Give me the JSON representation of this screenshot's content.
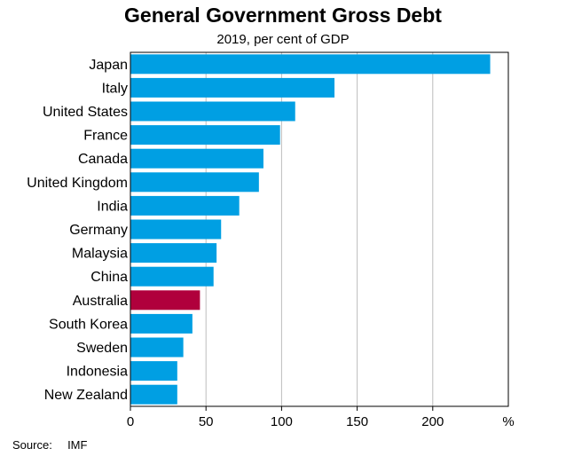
{
  "chart_data": {
    "type": "bar",
    "orientation": "horizontal",
    "title": "General Government Gross Debt",
    "subtitle": "2019, per cent of GDP",
    "categories": [
      "Japan",
      "Italy",
      "United States",
      "France",
      "Canada",
      "United Kingdom",
      "India",
      "Germany",
      "Malaysia",
      "China",
      "Australia",
      "South Korea",
      "Sweden",
      "Indonesia",
      "New Zealand"
    ],
    "values": [
      238,
      135,
      109,
      99,
      88,
      85,
      72,
      60,
      57,
      55,
      46,
      41,
      35,
      31,
      31
    ],
    "highlight": "Australia",
    "xlim": [
      0,
      250
    ],
    "xticks": [
      "0",
      "50",
      "100",
      "150",
      "200"
    ],
    "xunit": "%",
    "grid": true,
    "colors": {
      "bar": "#009fe3",
      "highlight": "#b0003c",
      "grid": "#bdbdbd",
      "frame": "#000000"
    }
  },
  "source": {
    "label": "Source:",
    "value": "IMF"
  }
}
